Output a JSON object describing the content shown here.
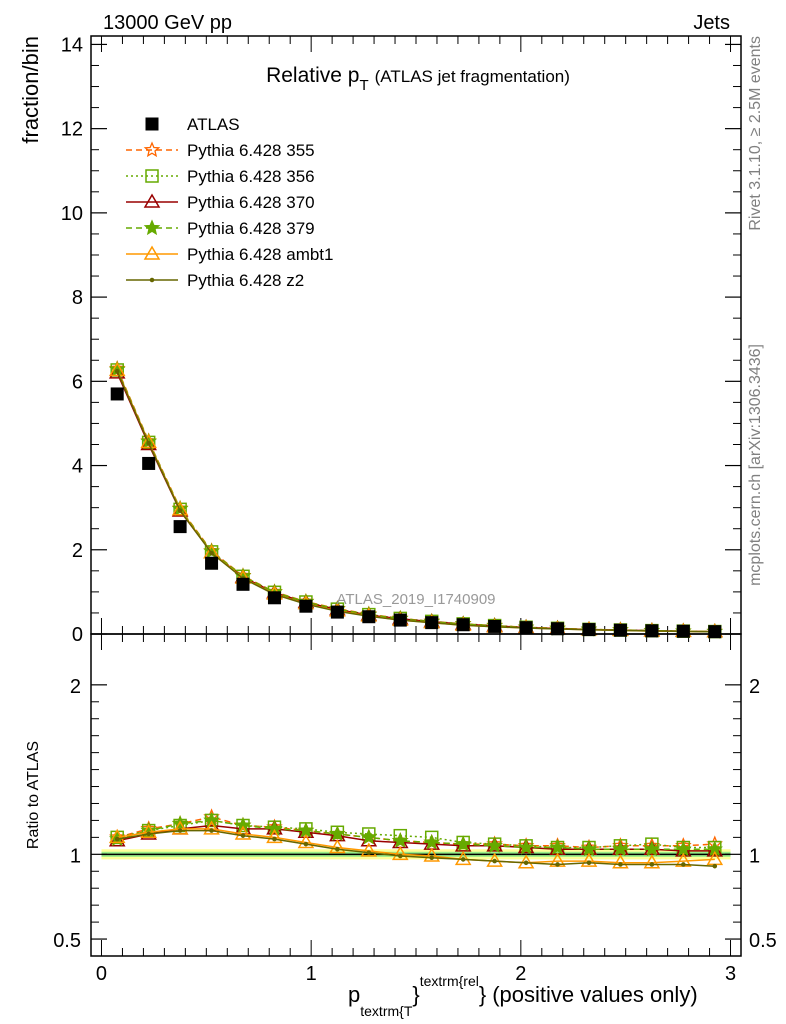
{
  "header": {
    "left": "13000 GeV pp",
    "right": "Jets"
  },
  "side_labels": {
    "rivet": "Rivet 3.1.10, ≥ 2.5M events",
    "mcplots": "mcplots.cern.ch [arXiv:1306.3436]"
  },
  "chart_data": [
    {
      "type": "line",
      "panel": "main",
      "title_main": "Relative p",
      "title_sub": "T",
      "title_rest": "(ATLAS jet fragmentation)",
      "ylabel": "fraction/bin",
      "watermark": "ATLAS_2019_I1740909",
      "xlim": [
        -0.05,
        3.05
      ],
      "ylim": [
        0,
        14.2
      ],
      "x_ticks": [
        0,
        1,
        2,
        3
      ],
      "y_ticks": [
        0,
        2,
        4,
        6,
        8,
        10,
        12,
        14
      ],
      "y_tick_labels": [
        "0",
        "2",
        "4",
        "6",
        "8",
        "10",
        "12",
        "14"
      ],
      "x": [
        0.075,
        0.225,
        0.375,
        0.525,
        0.675,
        0.825,
        0.975,
        1.125,
        1.275,
        1.425,
        1.575,
        1.725,
        1.875,
        2.025,
        2.175,
        2.325,
        2.475,
        2.625,
        2.775,
        2.925
      ],
      "data_series": {
        "name": "ATLAS",
        "values": [
          5.7,
          4.05,
          2.55,
          1.68,
          1.18,
          0.86,
          0.66,
          0.52,
          0.41,
          0.33,
          0.27,
          0.22,
          0.18,
          0.15,
          0.125,
          0.105,
          0.09,
          0.075,
          0.065,
          0.055
        ]
      },
      "series": [
        {
          "name": "Pythia 6.428 355",
          "color": "#ff6600",
          "dash": "6,4",
          "marker": "star-open",
          "values": [
            6.3,
            4.58,
            2.98,
            1.97,
            1.38,
            1.0,
            0.77,
            0.6,
            0.47,
            0.37,
            0.3,
            0.24,
            0.2,
            0.16,
            0.135,
            0.11,
            0.095,
            0.08,
            0.068,
            0.058
          ]
        },
        {
          "name": "Pythia 6.428 356",
          "color": "#66aa00",
          "dash": "2,3",
          "marker": "square-open",
          "values": [
            6.27,
            4.55,
            2.96,
            1.95,
            1.37,
            0.99,
            0.76,
            0.59,
            0.46,
            0.37,
            0.3,
            0.24,
            0.2,
            0.16,
            0.135,
            0.11,
            0.095,
            0.08,
            0.068,
            0.058
          ]
        },
        {
          "name": "Pythia 6.428 370",
          "color": "#990000",
          "dash": "",
          "marker": "triangle-open",
          "values": [
            6.2,
            4.5,
            2.92,
            1.93,
            1.35,
            0.98,
            0.75,
            0.58,
            0.45,
            0.36,
            0.29,
            0.235,
            0.19,
            0.155,
            0.13,
            0.108,
            0.093,
            0.078,
            0.066,
            0.056
          ]
        },
        {
          "name": "Pythia 6.428 379",
          "color": "#66aa00",
          "dash": "6,4",
          "marker": "star",
          "values": [
            6.28,
            4.57,
            2.97,
            1.96,
            1.37,
            0.99,
            0.76,
            0.59,
            0.46,
            0.36,
            0.29,
            0.235,
            0.19,
            0.155,
            0.13,
            0.108,
            0.093,
            0.078,
            0.066,
            0.056
          ]
        },
        {
          "name": "Pythia 6.428 ambt1",
          "color": "#ff9900",
          "dash": "",
          "marker": "triangle-open",
          "values": [
            6.26,
            4.55,
            2.95,
            1.93,
            1.33,
            0.95,
            0.72,
            0.55,
            0.43,
            0.33,
            0.27,
            0.21,
            0.17,
            0.143,
            0.12,
            0.1,
            0.085,
            0.07,
            0.062,
            0.052
          ]
        },
        {
          "name": "Pythia 6.428 z2",
          "color": "#666600",
          "dash": "",
          "marker": "dot",
          "values": [
            6.24,
            4.53,
            2.93,
            1.92,
            1.32,
            0.94,
            0.71,
            0.54,
            0.42,
            0.33,
            0.265,
            0.21,
            0.17,
            0.142,
            0.118,
            0.1,
            0.085,
            0.071,
            0.062,
            0.051
          ]
        }
      ]
    },
    {
      "type": "line",
      "panel": "ratio",
      "ylabel": "Ratio to ATLAS",
      "xlabel_main": "p",
      "xlabel_sub": "textrm{T",
      "xlabel_sup": "textrm{rel",
      "xlabel_brace_sub": "}",
      "xlabel_brace_sup": "}",
      "xlabel_rest": "(positive values only)",
      "xlim": [
        -0.05,
        3.05
      ],
      "ylim": [
        0.4,
        2.3
      ],
      "y_ticks": [
        0.5,
        1,
        2
      ],
      "y_tick_labels": [
        "0.5",
        "1",
        "2"
      ],
      "x_tick_labels": [
        "0",
        "1",
        "2",
        "3"
      ],
      "band_inner": [
        0.985,
        1.015
      ],
      "band_outer": [
        0.97,
        1.03
      ],
      "series": [
        {
          "name": "Pythia 6.428 355",
          "values": [
            1.1,
            1.15,
            1.18,
            1.22,
            1.17,
            1.16,
            1.14,
            1.12,
            1.1,
            1.08,
            1.07,
            1.06,
            1.06,
            1.05,
            1.05,
            1.04,
            1.05,
            1.05,
            1.05,
            1.06
          ]
        },
        {
          "name": "Pythia 6.428 356",
          "values": [
            1.1,
            1.14,
            1.17,
            1.2,
            1.17,
            1.16,
            1.15,
            1.13,
            1.12,
            1.11,
            1.1,
            1.07,
            1.06,
            1.05,
            1.04,
            1.04,
            1.05,
            1.06,
            1.04,
            1.04
          ]
        },
        {
          "name": "Pythia 6.428 370",
          "values": [
            1.08,
            1.12,
            1.15,
            1.17,
            1.15,
            1.15,
            1.13,
            1.11,
            1.08,
            1.07,
            1.06,
            1.05,
            1.05,
            1.04,
            1.03,
            1.03,
            1.03,
            1.03,
            1.02,
            1.02
          ]
        },
        {
          "name": "Pythia 6.428 379",
          "values": [
            1.09,
            1.14,
            1.18,
            1.2,
            1.17,
            1.15,
            1.14,
            1.12,
            1.1,
            1.08,
            1.07,
            1.06,
            1.05,
            1.04,
            1.04,
            1.03,
            1.03,
            1.03,
            1.03,
            1.03
          ]
        },
        {
          "name": "Pythia 6.428 ambt1",
          "values": [
            1.1,
            1.13,
            1.15,
            1.15,
            1.12,
            1.1,
            1.07,
            1.04,
            1.02,
            1.0,
            0.99,
            0.97,
            0.96,
            0.95,
            0.96,
            0.96,
            0.95,
            0.95,
            0.96,
            0.97
          ]
        },
        {
          "name": "Pythia 6.428 z2",
          "values": [
            1.09,
            1.12,
            1.14,
            1.14,
            1.11,
            1.09,
            1.06,
            1.03,
            1.01,
            0.99,
            0.98,
            0.97,
            0.96,
            0.95,
            0.94,
            0.95,
            0.94,
            0.94,
            0.94,
            0.93
          ]
        }
      ]
    }
  ]
}
